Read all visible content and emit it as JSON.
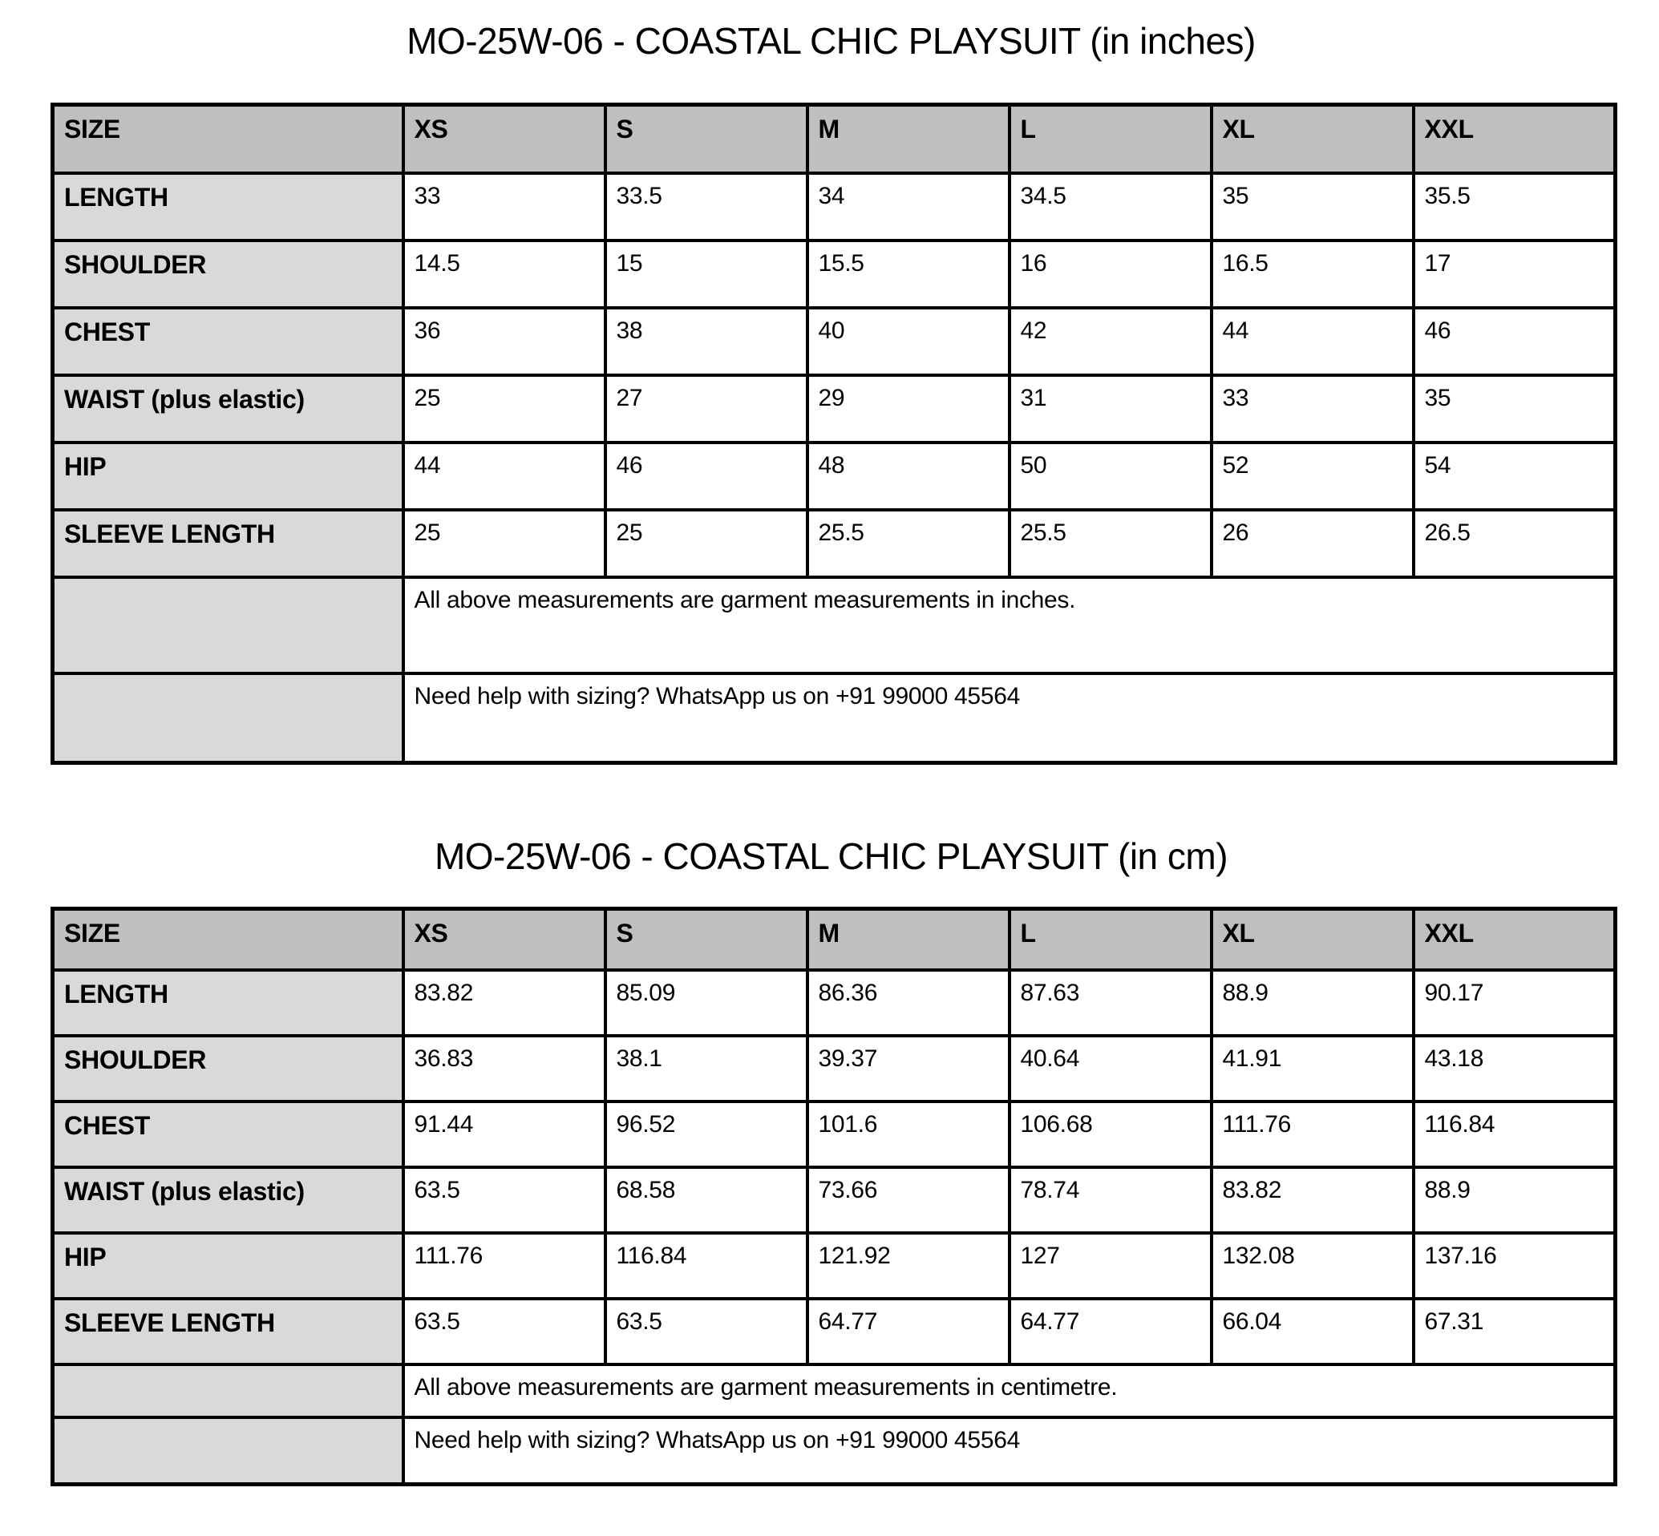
{
  "colors": {
    "header_bg": "#bfbfbf",
    "label_bg": "#d9d9d9",
    "cell_bg": "#ffffff",
    "border": "#000000",
    "text": "#000000"
  },
  "tables": [
    {
      "title": "MO-25W-06 - COASTAL CHIC PLAYSUIT (in inches)",
      "size_header": "SIZE",
      "sizes": [
        "XS",
        "S",
        "M",
        "L",
        "XL",
        "XXL"
      ],
      "rows": [
        {
          "label": "LENGTH",
          "values": [
            "33",
            "33.5",
            "34",
            "34.5",
            "35",
            "35.5"
          ]
        },
        {
          "label": "SHOULDER",
          "values": [
            "14.5",
            "15",
            "15.5",
            "16",
            "16.5",
            "17"
          ]
        },
        {
          "label": "CHEST",
          "values": [
            "36",
            "38",
            "40",
            "42",
            "44",
            "46"
          ]
        },
        {
          "label": "WAIST (plus elastic)",
          "values": [
            "25",
            "27",
            "29",
            "31",
            "33",
            "35"
          ]
        },
        {
          "label": "HIP",
          "values": [
            "44",
            "46",
            "48",
            "50",
            "52",
            "54"
          ]
        },
        {
          "label": "SLEEVE LENGTH",
          "values": [
            "25",
            "25",
            "25.5",
            "25.5",
            "26",
            "26.5"
          ]
        }
      ],
      "notes": [
        "All above measurements are garment measurements in inches.",
        "Need help with sizing? WhatsApp us on +91 99000 45564"
      ]
    },
    {
      "title": "MO-25W-06 - COASTAL CHIC PLAYSUIT (in cm)",
      "size_header": "SIZE",
      "sizes": [
        "XS",
        "S",
        "M",
        "L",
        "XL",
        "XXL"
      ],
      "rows": [
        {
          "label": "LENGTH",
          "values": [
            "83.82",
            "85.09",
            "86.36",
            "87.63",
            "88.9",
            "90.17"
          ]
        },
        {
          "label": "SHOULDER",
          "values": [
            "36.83",
            "38.1",
            "39.37",
            "40.64",
            "41.91",
            "43.18"
          ]
        },
        {
          "label": "CHEST",
          "values": [
            "91.44",
            "96.52",
            "101.6",
            "106.68",
            "111.76",
            "116.84"
          ]
        },
        {
          "label": "WAIST (plus elastic)",
          "values": [
            "63.5",
            "68.58",
            "73.66",
            "78.74",
            "83.82",
            "88.9"
          ]
        },
        {
          "label": "HIP",
          "values": [
            "111.76",
            "116.84",
            "121.92",
            "127",
            "132.08",
            "137.16"
          ]
        },
        {
          "label": "SLEEVE LENGTH",
          "values": [
            "63.5",
            "63.5",
            "64.77",
            "64.77",
            "66.04",
            "67.31"
          ]
        }
      ],
      "notes": [
        "All above measurements are garment measurements in centimetre.",
        "Need help with sizing? WhatsApp us on +91 99000 45564"
      ]
    }
  ]
}
